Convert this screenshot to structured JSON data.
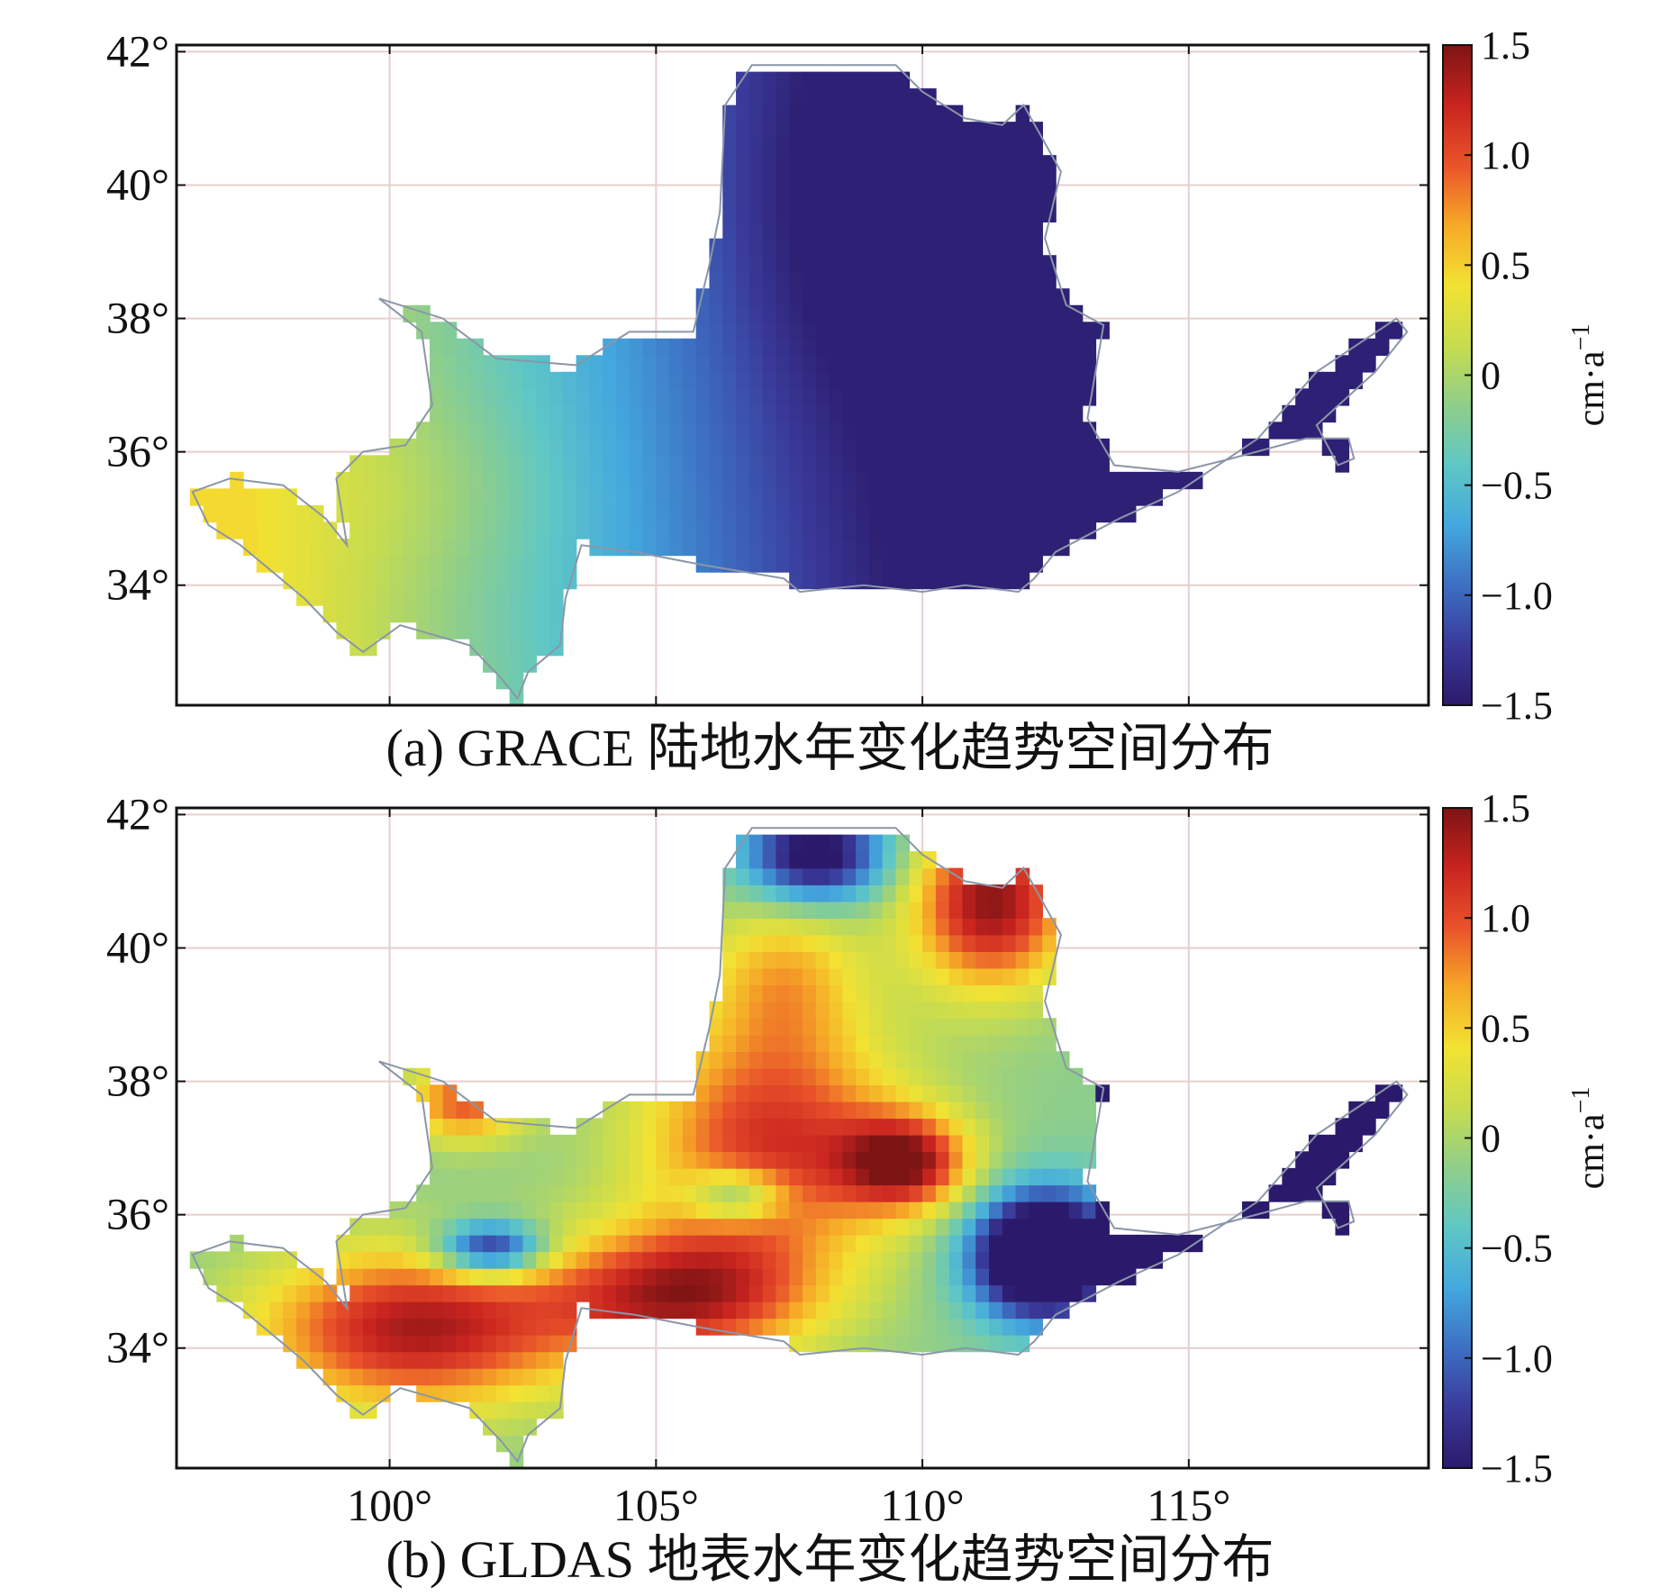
{
  "chart_data": [
    {
      "type": "heatmap",
      "caption": "(a) GRACE 陆地水年变化趋势空间分布",
      "xlim": [
        96,
        119.5
      ],
      "ylim": [
        32.2,
        42.1
      ],
      "x_ticks": [
        100,
        105,
        110,
        115
      ],
      "y_ticks": [
        34,
        36,
        38,
        40,
        42
      ],
      "x_tick_labels": [],
      "y_tick_labels": [
        "42°",
        "40°",
        "38°",
        "36°",
        "34°"
      ],
      "grid": true,
      "colorbar": {
        "min": -1.5,
        "max": 1.5,
        "tick_labels": [
          "1.5",
          "1.0",
          "0.5",
          "0",
          "−0.5",
          "−1.0",
          "−1.5"
        ],
        "tick_values": [
          1.5,
          1.0,
          0.5,
          0,
          -0.5,
          -1.0,
          -1.5
        ],
        "unit": "cm·a",
        "unit_exponent": "−1"
      },
      "pattern": "trend_a",
      "range_description": "west ≈ +0.3, centre ≈ 0, east ≈ −1.4"
    },
    {
      "type": "heatmap",
      "caption": "(b) GLDAS 地表水年变化趋势空间分布",
      "xlim": [
        96,
        119.5
      ],
      "ylim": [
        32.2,
        42.1
      ],
      "x_ticks": [
        100,
        105,
        110,
        115
      ],
      "y_ticks": [
        34,
        36,
        38,
        40,
        42
      ],
      "x_tick_labels": [
        "100°",
        "105°",
        "110°",
        "115°"
      ],
      "y_tick_labels": [
        "42°",
        "40°",
        "38°",
        "36°",
        "34°"
      ],
      "grid": true,
      "colorbar": {
        "min": -1.5,
        "max": 1.5,
        "tick_labels": [
          "1.5",
          "1.0",
          "0.5",
          "0",
          "−0.5",
          "−1.0",
          "−1.5"
        ],
        "tick_values": [
          1.5,
          1.0,
          0.5,
          0,
          -0.5,
          -1.0,
          -1.5
        ],
        "unit": "cm·a",
        "unit_exponent": "−1"
      },
      "pattern": "trend_b",
      "range_description": "south-west ≈ +1.5, centre +0.5 to +1.5, north-east ≈ +1.5, south-east ≈ −1.4"
    }
  ],
  "colors": {
    "colormap": [
      "#2b1a6b",
      "#3a3a9a",
      "#3d6fc2",
      "#44a8de",
      "#5fc7c5",
      "#8fce8a",
      "#c7dc4f",
      "#f2e232",
      "#f6a927",
      "#e9532a",
      "#c9241f",
      "#7d1414"
    ],
    "grid": "#e6cfcf",
    "frame": "#111111",
    "boundary": "#8b96a8"
  }
}
